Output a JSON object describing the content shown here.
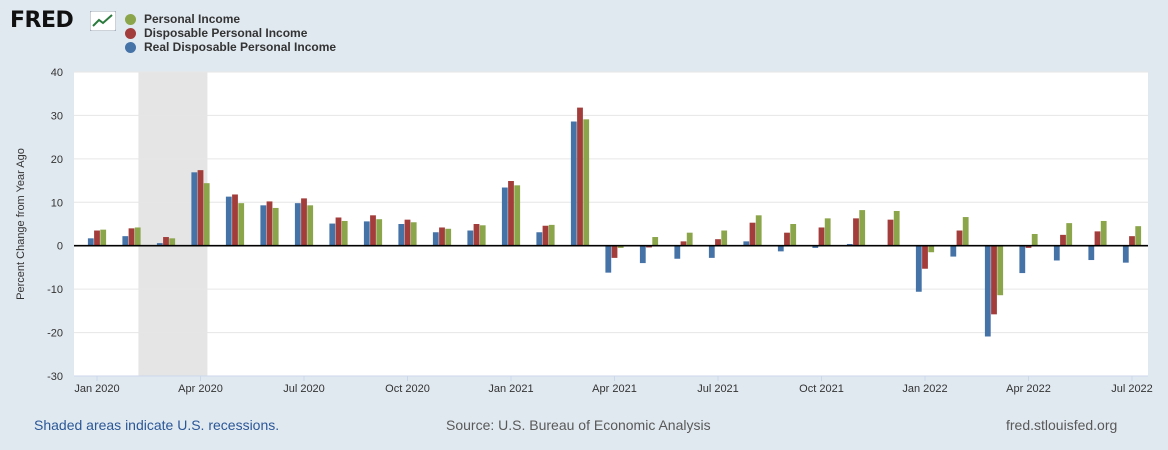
{
  "header": {
    "logo_text": "FRED",
    "logo_icon": "line-graph-icon"
  },
  "legend": [
    {
      "label": "Personal Income",
      "color": "#8ba54a"
    },
    {
      "label": "Disposable Personal Income",
      "color": "#a33d3b"
    },
    {
      "label": "Real Disposable Personal Income",
      "color": "#4572a7"
    }
  ],
  "footer": {
    "recession_note": "Shaded areas indicate U.S. recessions.",
    "source": "Source: U.S. Bureau of Economic Analysis",
    "site": "fred.stlouisfed.org"
  },
  "chart_data": {
    "type": "bar",
    "title": "",
    "xlabel": "",
    "ylabel": "Percent Change from Year Ago",
    "ylim": [
      -30,
      40
    ],
    "yticks": [
      -30,
      -20,
      -10,
      0,
      10,
      20,
      30,
      40
    ],
    "grid": true,
    "recession_shading": {
      "from_index": 1.2,
      "to_index": 3.2
    },
    "categories": [
      "Jan 2020",
      "Feb 2020",
      "Mar 2020",
      "Apr 2020",
      "May 2020",
      "Jun 2020",
      "Jul 2020",
      "Aug 2020",
      "Sep 2020",
      "Oct 2020",
      "Nov 2020",
      "Dec 2020",
      "Jan 2021",
      "Feb 2021",
      "Mar 2021",
      "Apr 2021",
      "May 2021",
      "Jun 2021",
      "Jul 2021",
      "Aug 2021",
      "Sep 2021",
      "Oct 2021",
      "Nov 2021",
      "Dec 2021",
      "Jan 2022",
      "Feb 2022",
      "Mar 2022",
      "Apr 2022",
      "May 2022",
      "Jun 2022",
      "Jul 2022"
    ],
    "x_tick_labels": [
      {
        "index": 0,
        "label": "Jan 2020"
      },
      {
        "index": 3,
        "label": "Apr 2020"
      },
      {
        "index": 6,
        "label": "Jul 2020"
      },
      {
        "index": 9,
        "label": "Oct 2020"
      },
      {
        "index": 12,
        "label": "Jan 2021"
      },
      {
        "index": 15,
        "label": "Apr 2021"
      },
      {
        "index": 18,
        "label": "Jul 2021"
      },
      {
        "index": 21,
        "label": "Oct 2021"
      },
      {
        "index": 24,
        "label": "Jan 2022"
      },
      {
        "index": 27,
        "label": "Apr 2022"
      },
      {
        "index": 30,
        "label": "Jul 2022"
      }
    ],
    "series": [
      {
        "name": "Real Disposable Personal Income",
        "color": "#4572a7",
        "values": [
          1.7,
          2.2,
          0.6,
          16.9,
          11.3,
          9.3,
          9.8,
          5.1,
          5.6,
          5.0,
          3.1,
          3.5,
          13.4,
          3.1,
          28.6,
          -6.2,
          -4.0,
          -3.0,
          -2.8,
          1.0,
          -1.3,
          -0.5,
          0.4,
          -0.1,
          -10.6,
          -2.5,
          -20.9,
          -6.3,
          -3.4,
          -3.3,
          -3.9
        ]
      },
      {
        "name": "Disposable Personal Income",
        "color": "#a33d3b",
        "values": [
          3.5,
          4.0,
          2.0,
          17.4,
          11.8,
          10.2,
          10.9,
          6.5,
          7.0,
          6.0,
          4.2,
          5.0,
          14.9,
          4.6,
          31.8,
          -2.8,
          -0.4,
          1.0,
          1.5,
          5.3,
          3.0,
          4.2,
          6.3,
          6.0,
          -5.3,
          3.5,
          -15.8,
          -0.5,
          2.5,
          3.3,
          2.2
        ]
      },
      {
        "name": "Personal Income",
        "color": "#8ba54a",
        "values": [
          3.7,
          4.2,
          1.7,
          14.4,
          9.8,
          8.7,
          9.3,
          5.7,
          6.1,
          5.4,
          3.9,
          4.7,
          13.9,
          4.8,
          29.1,
          -0.5,
          2.0,
          3.0,
          3.5,
          7.0,
          5.0,
          6.3,
          8.2,
          8.0,
          -1.5,
          6.6,
          -11.4,
          2.7,
          5.2,
          5.7,
          4.5
        ]
      }
    ]
  }
}
